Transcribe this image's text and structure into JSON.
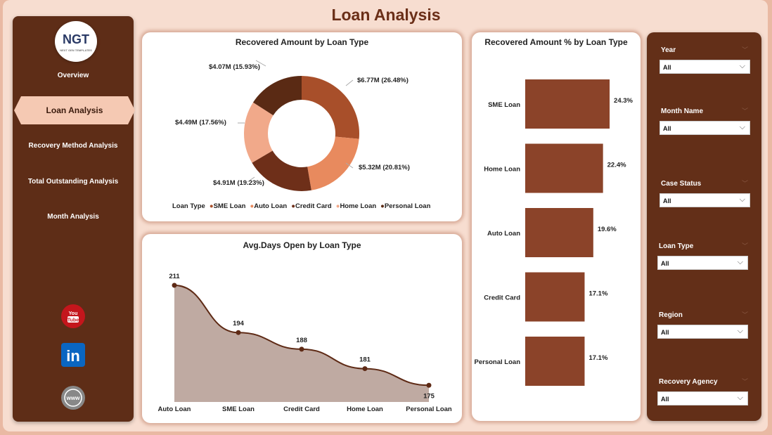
{
  "header": {
    "title": "Loan Analysis"
  },
  "logo": {
    "text": "NGT",
    "subtitle": "NEXT GEN TEMPLATES"
  },
  "nav": {
    "items": [
      {
        "label": "Overview"
      },
      {
        "label": "Loan Analysis",
        "active": true
      },
      {
        "label": "Recovery Method Analysis"
      },
      {
        "label": "Total Outstanding Analysis"
      },
      {
        "label": "Month Analysis"
      }
    ],
    "social": [
      {
        "icon": "youtube-icon",
        "text": "You Tube"
      },
      {
        "icon": "linkedin-icon",
        "text": "in"
      },
      {
        "icon": "web-icon",
        "text": "www"
      }
    ]
  },
  "filters": [
    {
      "label": "Year",
      "value": "All"
    },
    {
      "label": "Month Name",
      "value": "All"
    },
    {
      "label": "Case Status",
      "value": "All"
    },
    {
      "label": "Loan Type",
      "value": "All"
    },
    {
      "label": "Region",
      "value": "All"
    },
    {
      "label": "Recovery Agency",
      "value": "All"
    }
  ],
  "colors": {
    "nav_bg": "#5e2d17",
    "bar": "#8b4329",
    "accent": "#6b2f18"
  },
  "chart_data": [
    {
      "type": "pie",
      "title": "Recovered Amount by Loan Type",
      "legend_title": "Loan Type",
      "legend_position": "bottom",
      "slices": [
        {
          "name": "SME Loan",
          "value": 6.77,
          "label": "$6.77M (26.48%)",
          "pct": 26.48,
          "color": "#a84f2a"
        },
        {
          "name": "Auto Loan",
          "value": 5.32,
          "label": "$5.32M (20.81%)",
          "pct": 20.81,
          "color": "#e88a5e"
        },
        {
          "name": "Credit Card",
          "value": 4.91,
          "label": "$4.91M (19.23%)",
          "pct": 19.23,
          "color": "#6e2f19"
        },
        {
          "name": "Home Loan",
          "value": 4.49,
          "label": "$4.49M (17.56%)",
          "pct": 17.56,
          "color": "#f1a98a"
        },
        {
          "name": "Personal Loan",
          "value": 4.07,
          "label": "$4.07M (15.93%)",
          "pct": 15.93,
          "color": "#5a2a14"
        }
      ]
    },
    {
      "type": "area",
      "title": "Avg.Days Open by Loan Type",
      "categories": [
        "Auto Loan",
        "SME Loan",
        "Credit Card",
        "Home Loan",
        "Personal Loan"
      ],
      "values": [
        211,
        194,
        188,
        181,
        175
      ],
      "line_color": "#5e2a15",
      "fill_color": "#bfaaa2"
    },
    {
      "type": "bar",
      "orientation": "horizontal",
      "title": "Recovered Amount % by Loan Type",
      "categories": [
        "SME Loan",
        "Home Loan",
        "Auto Loan",
        "Credit Card",
        "Personal Loan"
      ],
      "values": [
        24.3,
        22.4,
        19.6,
        17.1,
        17.1
      ],
      "labels": [
        "24.3%",
        "22.4%",
        "19.6%",
        "17.1%",
        "17.1%"
      ],
      "color": "#8b4329"
    }
  ]
}
